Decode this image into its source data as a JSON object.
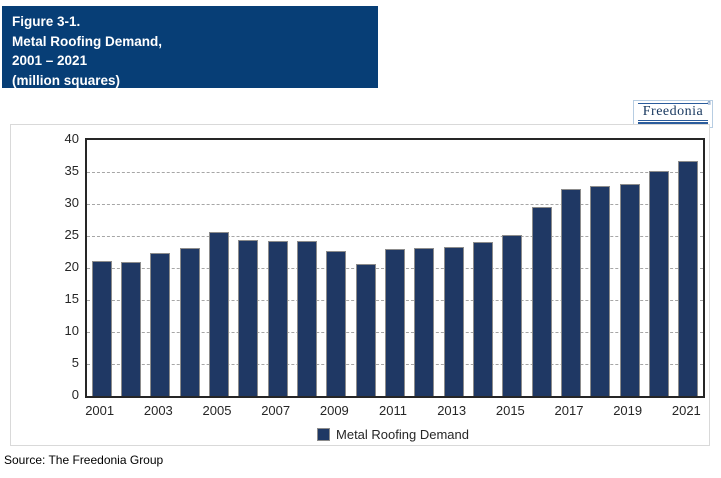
{
  "header": {
    "bg_color": "#073E76",
    "lines": [
      "Figure 3-1.",
      "Metal Roofing Demand,",
      "2001 – 2021",
      "(million squares)"
    ]
  },
  "logo": {
    "text": "Freedonia",
    "registered_mark": "®",
    "color": "#17375E",
    "accent_color": "#2B5C9C"
  },
  "chart_data": {
    "type": "bar",
    "title": "Metal Roofing Demand, 2001 – 2021 (million squares)",
    "categories": [
      "2001",
      "2002",
      "2003",
      "2004",
      "2005",
      "2006",
      "2007",
      "2008",
      "2009",
      "2010",
      "2011",
      "2012",
      "2013",
      "2014",
      "2015",
      "2016",
      "2017",
      "2018",
      "2019",
      "2020",
      "2021"
    ],
    "values": [
      21.1,
      20.9,
      22.3,
      23.1,
      25.7,
      24.4,
      24.2,
      24.2,
      22.7,
      20.6,
      22.9,
      23.1,
      23.3,
      24.0,
      25.2,
      29.5,
      32.4,
      32.8,
      33.2,
      35.2,
      36.7
    ],
    "xlabel": "",
    "ylabel": "million squares",
    "ylim": [
      0,
      40
    ],
    "yticks": [
      0,
      5,
      10,
      15,
      20,
      25,
      30,
      35,
      40
    ],
    "xtick_labels": [
      "2001",
      "2003",
      "2005",
      "2007",
      "2009",
      "2011",
      "2013",
      "2015",
      "2017",
      "2019",
      "2021"
    ],
    "grid": "horizontal-dashed",
    "gridline_color": "#A6A6A6",
    "bar_color": "#1F3864",
    "legend": [
      "Metal Roofing Demand"
    ],
    "legend_position": "bottom"
  },
  "source": "Source: The Freedonia Group"
}
